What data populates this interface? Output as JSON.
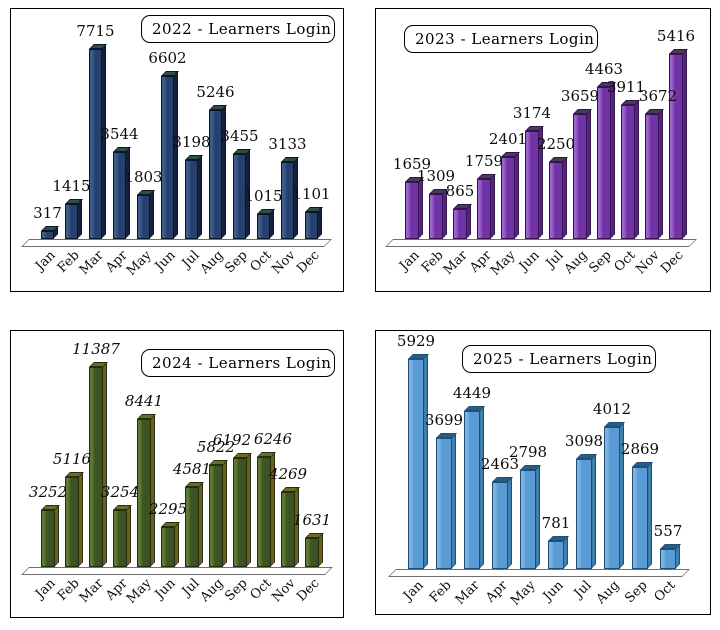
{
  "chart_data": [
    {
      "type": "bar",
      "title": "2022 - Learners Login",
      "categories": [
        "Jan",
        "Feb",
        "Mar",
        "Apr",
        "May",
        "Jun",
        "Jul",
        "Aug",
        "Sep",
        "Oct",
        "Nov",
        "Dec"
      ],
      "values": [
        317,
        1415,
        7715,
        3544,
        1803,
        6602,
        3198,
        5246,
        3455,
        1015,
        3133,
        1101
      ],
      "ylim": [
        0,
        7715
      ],
      "grid": false,
      "legend": "none",
      "value_labels_style": "normal",
      "colors": {
        "front": "#26406e",
        "highlight": "#3c5c8c",
        "top": "#2e4f45",
        "side": "#13213c",
        "outline": "#0b1526"
      }
    },
    {
      "type": "bar",
      "title": "2023 - Learners Login",
      "categories": [
        "Jan",
        "Feb",
        "Mar",
        "Apr",
        "May",
        "Jun",
        "Jul",
        "Aug",
        "Sep",
        "Oct",
        "Nov",
        "Dec"
      ],
      "values": [
        1659,
        1309,
        865,
        1759,
        2401,
        3174,
        2250,
        3659,
        4463,
        3911,
        3672,
        5416
      ],
      "ylim": [
        0,
        5416
      ],
      "grid": false,
      "legend": "none",
      "value_labels_style": "normal",
      "colors": {
        "front": "#7233a6",
        "highlight": "#9a63c9",
        "top": "#493b52",
        "side": "#53257c",
        "outline": "#33144e"
      }
    },
    {
      "type": "bar",
      "title": "2024 - Learners Login",
      "categories": [
        "Jan",
        "Feb",
        "Mar",
        "Apr",
        "May",
        "Jun",
        "Jul",
        "Aug",
        "Sep",
        "Oct",
        "Nov",
        "Dec"
      ],
      "values": [
        3252,
        5116,
        11387,
        3254,
        8441,
        2295,
        4581,
        5822,
        6192,
        6246,
        4269,
        1631
      ],
      "ylim": [
        0,
        11387
      ],
      "grid": false,
      "legend": "none",
      "value_labels_style": "italic",
      "colors": {
        "front": "#3d5321",
        "highlight": "#5d7a35",
        "top": "#6f6b25",
        "side": "#6f5d1d",
        "outline": "#252f10"
      }
    },
    {
      "type": "bar",
      "title": "2025 - Learners Login",
      "categories": [
        "Jan",
        "Feb",
        "Mar",
        "Apr",
        "May",
        "Jun",
        "Jul",
        "Aug",
        "Sep",
        "Oct"
      ],
      "values": [
        5929,
        3699,
        4449,
        2463,
        2798,
        781,
        3098,
        4012,
        2869,
        557
      ],
      "ylim": [
        0,
        5929
      ],
      "grid": false,
      "legend": "none",
      "value_labels_style": "normal",
      "colors": {
        "front": "#5b9bd5",
        "highlight": "#7fb4e0",
        "top": "#2a5e80",
        "side": "#3d7fad",
        "outline": "#1f4e79"
      }
    }
  ]
}
